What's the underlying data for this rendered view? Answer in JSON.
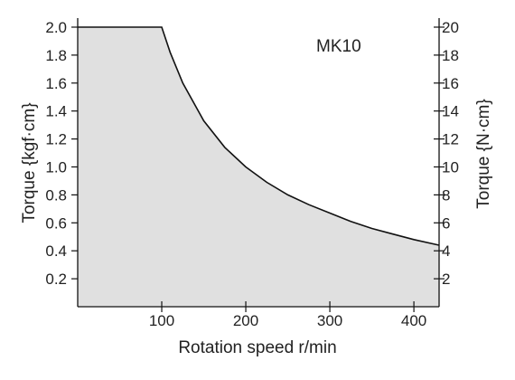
{
  "chart_data": {
    "type": "area",
    "title": "",
    "annotation": "MK10",
    "xlabel": "Rotation speed r/min",
    "ylabel_left": "Torque {kgf·cm}",
    "ylabel_right": "Torque {N·cm}",
    "xlim": [
      0,
      430
    ],
    "ylim_left": [
      0,
      2.0
    ],
    "ylim_right": [
      0,
      20
    ],
    "x_ticks": [
      100,
      200,
      300,
      400
    ],
    "y_ticks_left": [
      "0.2",
      "0.4",
      "0.6",
      "0.8",
      "1.0",
      "1.2",
      "1.4",
      "1.6",
      "1.8",
      "2.0"
    ],
    "y_ticks_right": [
      "2",
      "4",
      "6",
      "8",
      "10",
      "12",
      "14",
      "16",
      "18",
      "20"
    ],
    "fill_color": "#e0e0e0",
    "line_color": "#111111",
    "grid": false,
    "series": [
      {
        "x": [
          0,
          100,
          110,
          125,
          150,
          175,
          200,
          225,
          250,
          275,
          300,
          325,
          350,
          375,
          400,
          430
        ],
        "y": [
          2.0,
          2.0,
          1.82,
          1.6,
          1.33,
          1.14,
          1.0,
          0.89,
          0.8,
          0.73,
          0.67,
          0.61,
          0.56,
          0.52,
          0.48,
          0.44
        ]
      }
    ]
  }
}
